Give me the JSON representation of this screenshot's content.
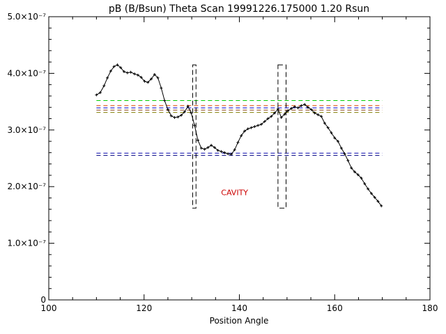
{
  "chart_data": {
    "type": "line",
    "title": "pB (B/Bsun) Theta Scan 19991226.175000 1.20 Rsun",
    "xlabel": "Position Angle",
    "ylabel": "",
    "xlim": [
      100,
      180
    ],
    "ylim": [
      0,
      5e-07
    ],
    "x_ticks": [
      100,
      120,
      140,
      160,
      180
    ],
    "y_ticks": [
      {
        "value": 0,
        "label": "0"
      },
      {
        "value": 1e-07,
        "label": "1.0×10⁻⁷"
      },
      {
        "value": 2e-07,
        "label": "2.0×10⁻⁷"
      },
      {
        "value": 3e-07,
        "label": "3.0×10⁻⁷"
      },
      {
        "value": 4e-07,
        "label": "4.0×10⁻⁷"
      },
      {
        "value": 5e-07,
        "label": "5.0×10⁻⁷"
      }
    ],
    "series": [
      {
        "style": "line-with-plus-markers",
        "color": "#000000",
        "x": [
          110,
          110.8,
          111.6,
          112.3,
          113,
          113.7,
          114.4,
          115.1,
          115.8,
          116.5,
          117.2,
          118,
          118.7,
          119.4,
          120.1,
          120.8,
          121.5,
          122.2,
          122.9,
          123.6,
          124.3,
          125,
          125.7,
          126.4,
          127.1,
          127.8,
          128.5,
          129.2,
          129.9,
          130.6,
          131.3,
          132,
          132.7,
          133.4,
          134.1,
          134.8,
          135.5,
          136.2,
          136.9,
          137.6,
          138.3,
          139,
          139.7,
          140.4,
          141.1,
          141.8,
          142.5,
          143.2,
          143.9,
          144.6,
          145.3,
          146,
          146.7,
          147.4,
          148.1,
          148.8,
          149.5,
          150.2,
          150.9,
          151.6,
          152.3,
          153,
          153.7,
          154.4,
          155.1,
          155.8,
          156.5,
          157.2,
          157.9,
          158.6,
          159.3,
          160,
          160.7,
          161.4,
          162.1,
          162.8,
          163.5,
          164.2,
          164.9,
          165.6,
          166.3,
          167,
          167.7,
          168.4,
          169.1,
          169.8
        ],
        "y": [
          3.62e-07,
          3.66e-07,
          3.78e-07,
          3.92e-07,
          4.04e-07,
          4.12e-07,
          4.15e-07,
          4.1e-07,
          4.03e-07,
          4.01e-07,
          4.02e-07,
          3.99e-07,
          3.97e-07,
          3.93e-07,
          3.86e-07,
          3.84e-07,
          3.9e-07,
          3.98e-07,
          3.92e-07,
          3.74e-07,
          3.52e-07,
          3.36e-07,
          3.25e-07,
          3.22e-07,
          3.23e-07,
          3.26e-07,
          3.32e-07,
          3.42e-07,
          3.3e-07,
          3.08e-07,
          2.82e-07,
          2.68e-07,
          2.66e-07,
          2.69e-07,
          2.73e-07,
          2.69e-07,
          2.64e-07,
          2.62e-07,
          2.6e-07,
          2.58e-07,
          2.57e-07,
          2.65e-07,
          2.78e-07,
          2.9e-07,
          2.98e-07,
          3.02e-07,
          3.04e-07,
          3.06e-07,
          3.08e-07,
          3.1e-07,
          3.15e-07,
          3.2e-07,
          3.24e-07,
          3.3e-07,
          3.37e-07,
          3.22e-07,
          3.28e-07,
          3.34e-07,
          3.38e-07,
          3.41e-07,
          3.39e-07,
          3.43e-07,
          3.45e-07,
          3.4e-07,
          3.36e-07,
          3.3e-07,
          3.27e-07,
          3.24e-07,
          3.12e-07,
          3.04e-07,
          2.95e-07,
          2.86e-07,
          2.8e-07,
          2.68e-07,
          2.58e-07,
          2.46e-07,
          2.33e-07,
          2.26e-07,
          2.21e-07,
          2.15e-07,
          2.05e-07,
          1.96e-07,
          1.88e-07,
          1.81e-07,
          1.74e-07,
          1.66e-07
        ]
      }
    ],
    "reference_lines": [
      {
        "y": 3.52e-07,
        "color": "#00cc00",
        "style": "dashed",
        "x_range": [
          110,
          170
        ]
      },
      {
        "y": 3.43e-07,
        "color": "#dd4400",
        "style": "dashed",
        "x_range": [
          110,
          170
        ]
      },
      {
        "y": 3.39e-07,
        "color": "#0000cc",
        "style": "dashed",
        "x_range": [
          110,
          170
        ]
      },
      {
        "y": 3.35e-07,
        "color": "#8b4513",
        "style": "dashed",
        "x_range": [
          110,
          170
        ]
      },
      {
        "y": 3.31e-07,
        "color": "#808000",
        "style": "dashed",
        "x_range": [
          110,
          170
        ]
      },
      {
        "y": 2.59e-07,
        "color": "#0000aa",
        "style": "dashed",
        "x_range": [
          110,
          170
        ]
      },
      {
        "y": 2.55e-07,
        "color": "#000080",
        "style": "dashed",
        "x_range": [
          110,
          170
        ]
      }
    ],
    "boxes": [
      {
        "x0": 130.2,
        "x1": 130.9,
        "y0": 1.62e-07,
        "y1": 4.15e-07,
        "color": "#000000",
        "style": "dashed"
      },
      {
        "x0": 148.1,
        "x1": 149.8,
        "y0": 1.62e-07,
        "y1": 4.15e-07,
        "color": "#000000",
        "style": "dashed"
      }
    ],
    "annotations": [
      {
        "text": "CAVITY",
        "x": 139,
        "y": 1.85e-07,
        "color": "#cc0000"
      }
    ],
    "grid": false
  }
}
